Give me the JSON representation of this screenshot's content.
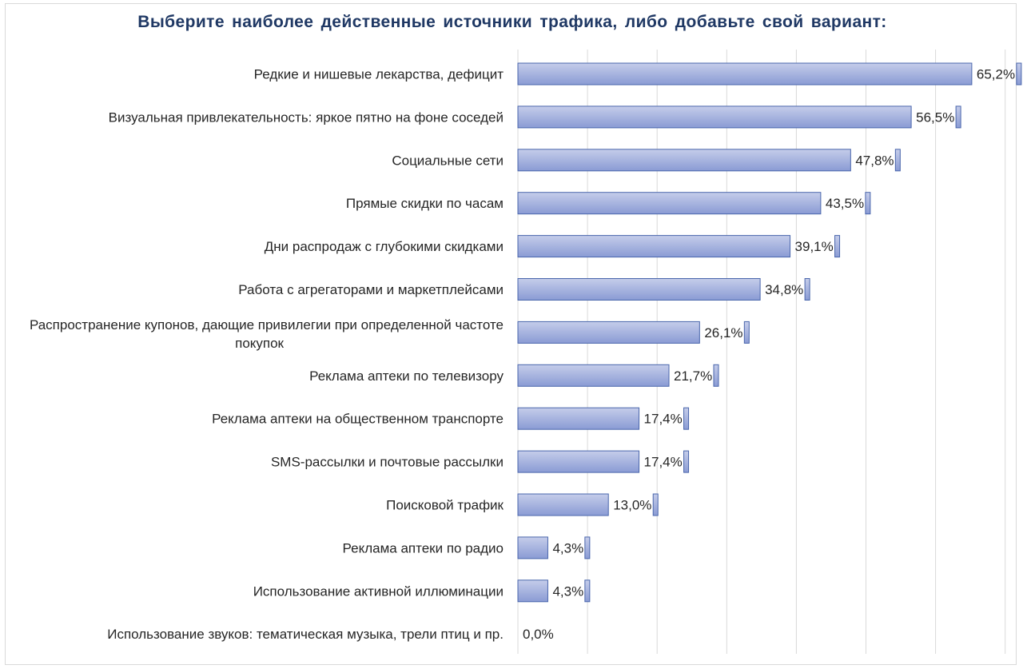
{
  "chart_data": {
    "type": "bar",
    "orientation": "horizontal",
    "title": "Выберите наиболее действенные источники трафика, либо добавьте свой вариант:",
    "xlabel": "",
    "ylabel": "",
    "xlim": [
      0,
      70
    ],
    "grid": true,
    "legend": "none",
    "categories": [
      "Редкие и нишевые лекарства, дефицит",
      "Визуальная привлекательность: яркое пятно на фоне соседей",
      "Социальные сети",
      "Прямые скидки по часам",
      "Дни распродаж с глубокими скидками",
      "Работа с агрегаторами и маркетплейсами",
      "Распространение купонов, дающие привилегии при определенной частоте покупок",
      "Реклама аптеки по телевизору",
      "Реклама аптеки на общественном транспорте",
      "SMS-рассылки и почтовые рассылки",
      "Поисковой трафик",
      "Реклама аптеки по радио",
      "Использование активной иллюминации",
      "Использование звуков: тематическая музыка, трели птиц и пр."
    ],
    "values": [
      65.2,
      56.5,
      47.8,
      43.5,
      39.1,
      34.8,
      26.1,
      21.7,
      17.4,
      17.4,
      13.0,
      4.3,
      4.3,
      0.0
    ],
    "data_labels": [
      "65,2%",
      "56,5%",
      "47,8%",
      "43,5%",
      "39,1%",
      "34,8%",
      "26,1%",
      "21,7%",
      "17,4%",
      "17,4%",
      "13,0%",
      "4,3%",
      "4,3%",
      "0,0%"
    ],
    "colors": {
      "bar_fill_light": "#c5cdea",
      "bar_fill_dark": "#8a9bd4",
      "bar_stroke": "#4a66ac",
      "gridline": "#d9d9d9",
      "title": "#1f3864",
      "text": "#262626"
    }
  }
}
